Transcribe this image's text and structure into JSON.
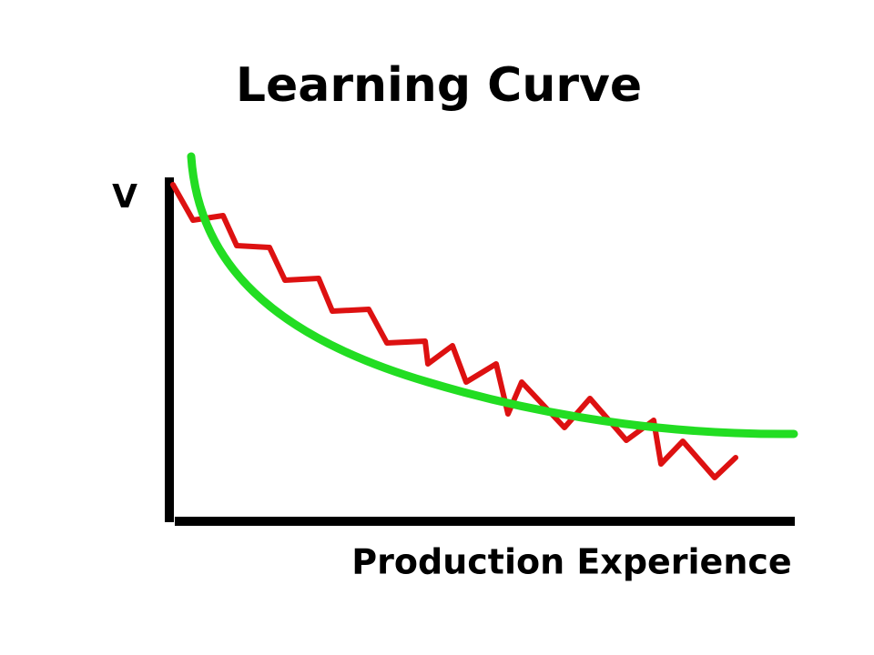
{
  "title": "Learning Curve",
  "y_axis_label": "V",
  "x_axis_label": "Production Experience"
}
